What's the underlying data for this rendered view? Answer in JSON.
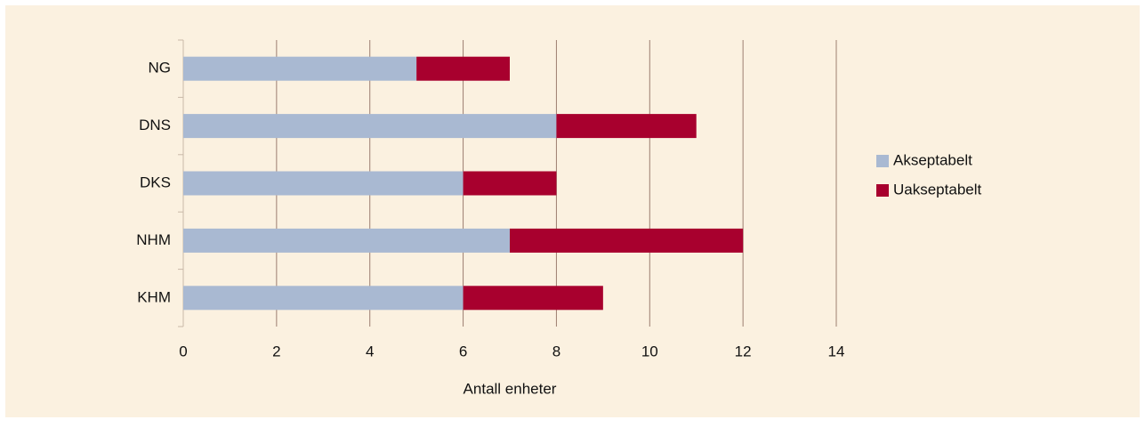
{
  "chart_data": {
    "type": "bar",
    "orientation": "horizontal",
    "stacked": true,
    "categories": [
      "NG",
      "DNS",
      "DKS",
      "NHM",
      "KHM"
    ],
    "series": [
      {
        "name": "Akseptabelt",
        "color": "#a9b9d2",
        "values": [
          5,
          8,
          6,
          7,
          6
        ]
      },
      {
        "name": "Uakseptabelt",
        "color": "#a8002e",
        "values": [
          2,
          3,
          2,
          5,
          3
        ]
      }
    ],
    "x_label": "Antall enheter",
    "xlim": [
      0,
      14
    ],
    "xticks": [
      0,
      2,
      4,
      6,
      8,
      10,
      12,
      14
    ],
    "grid": true,
    "legend": "right"
  }
}
